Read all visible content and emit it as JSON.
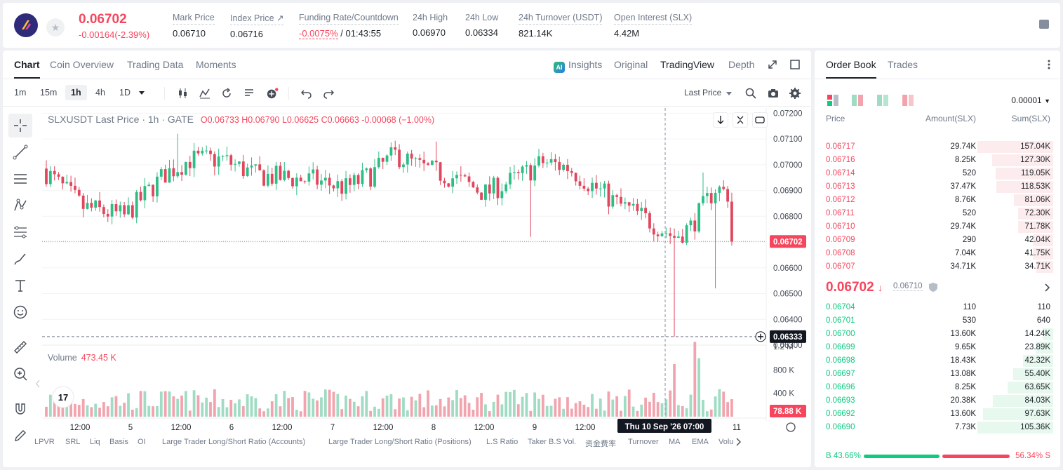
{
  "ticker": {
    "last_price": "0.06702",
    "change": "-0.00164(-2.39%)",
    "stats": [
      {
        "label": "Mark Price",
        "value": "0.06710"
      },
      {
        "label": "Index Price ↗",
        "value": "0.06716"
      },
      {
        "label": "Funding Rate/Countdown",
        "value_red": "-0.0075%",
        "value": "/ 01:43:55"
      },
      {
        "label": "24h High",
        "value": "0.06970"
      },
      {
        "label": "24h Low",
        "value": "0.06334"
      },
      {
        "label": "24h Turnover (USDT)",
        "value": "821.14K"
      },
      {
        "label": "Open Interest (SLX)",
        "value": "4.42M"
      }
    ]
  },
  "chart_tabs": {
    "left": [
      "Chart",
      "Coin Overview",
      "Trading Data",
      "Moments"
    ],
    "right": [
      "Insights",
      "Original",
      "TradingView",
      "Depth"
    ],
    "ai_badge": "AI",
    "active_left": "Chart",
    "active_right": "TradingView"
  },
  "timeframes": [
    "1m",
    "15m",
    "1h",
    "4h",
    "1D"
  ],
  "active_timeframe": "1h",
  "price_source": "Last Price",
  "legend": {
    "symbol": "SLXUSDT Last Price · 1h · GATE",
    "ohlc": "O0.06733  H0.06790  L0.06625  C0.06663  -0.00068  (−1.00%)"
  },
  "volume_legend": {
    "label": "Volume",
    "value": "473.45 K"
  },
  "price_axis": [
    "0.07200",
    "0.07100",
    "0.07000",
    "0.06900",
    "0.06800",
    "0.06700",
    "0.06600",
    "0.06500",
    "0.06400",
    "0.06300"
  ],
  "volume_axis": [
    "1.2 M",
    "800 K",
    "400 K"
  ],
  "time_axis": [
    "12:00",
    "5",
    "12:00",
    "6",
    "12:00",
    "7",
    "12:00",
    "8",
    "12:00",
    "9",
    "12:00",
    "11"
  ],
  "current_price_tag": "0.06702",
  "crosshair_price_tag": "0.06333",
  "crosshair_time_tag": "Thu 10 Sep '26   07:00",
  "volume_tag": "78.88 K",
  "tv_logo": "17",
  "bottom_indicators": [
    "LPVR",
    "SRL",
    "Liq",
    "Basis",
    "OI",
    "Large Trader Long/Short Ratio (Accounts)",
    "Large Trader Long/Short Ratio (Positions)",
    "L.S Ratio",
    "Taker B.S Vol.",
    "资金费率",
    "Turnover",
    "MA",
    "EMA",
    "Volu"
  ],
  "chart_data": {
    "type": "candlestick",
    "symbol": "SLXUSDT",
    "interval": "1h",
    "ylim": [
      0.063,
      0.0722
    ],
    "volume_ylim": [
      0,
      1200000
    ],
    "last_price": 0.06702,
    "low_marker": 0.06333,
    "series_colors": {
      "up": "#2ebd85",
      "down": "#e0475d",
      "up_volume": "#9fdcc3",
      "down_volume": "#f2a4ae"
    }
  },
  "order_book": {
    "tabs": [
      "Order Book",
      "Trades"
    ],
    "precision": "0.00001",
    "headers": [
      "Price",
      "Amount(SLX)",
      "Sum(SLX)"
    ],
    "asks": [
      {
        "price": "0.06717",
        "amount": "29.74K",
        "sum": "157.04K",
        "depth": 1.0
      },
      {
        "price": "0.06716",
        "amount": "8.25K",
        "sum": "127.30K",
        "depth": 0.81
      },
      {
        "price": "0.06714",
        "amount": "520",
        "sum": "119.05K",
        "depth": 0.76
      },
      {
        "price": "0.06713",
        "amount": "37.47K",
        "sum": "118.53K",
        "depth": 0.75
      },
      {
        "price": "0.06712",
        "amount": "8.76K",
        "sum": "81.06K",
        "depth": 0.52
      },
      {
        "price": "0.06711",
        "amount": "520",
        "sum": "72.30K",
        "depth": 0.46
      },
      {
        "price": "0.06710",
        "amount": "29.74K",
        "sum": "71.78K",
        "depth": 0.46
      },
      {
        "price": "0.06709",
        "amount": "290",
        "sum": "42.04K",
        "depth": 0.27
      },
      {
        "price": "0.06708",
        "amount": "7.04K",
        "sum": "41.75K",
        "depth": 0.27
      },
      {
        "price": "0.06707",
        "amount": "34.71K",
        "sum": "34.71K",
        "depth": 0.22
      }
    ],
    "mid_price": "0.06702",
    "mid_arrow": "↓",
    "mark_price": "0.06710",
    "bids": [
      {
        "price": "0.06704",
        "amount": "110",
        "sum": "110",
        "depth": 0.0
      },
      {
        "price": "0.06701",
        "amount": "530",
        "sum": "640",
        "depth": 0.0
      },
      {
        "price": "0.06700",
        "amount": "13.60K",
        "sum": "14.24K",
        "depth": 0.14
      },
      {
        "price": "0.06699",
        "amount": "9.65K",
        "sum": "23.89K",
        "depth": 0.23
      },
      {
        "price": "0.06698",
        "amount": "18.43K",
        "sum": "42.32K",
        "depth": 0.4
      },
      {
        "price": "0.06697",
        "amount": "13.08K",
        "sum": "55.40K",
        "depth": 0.53
      },
      {
        "price": "0.06696",
        "amount": "8.25K",
        "sum": "63.65K",
        "depth": 0.6
      },
      {
        "price": "0.06693",
        "amount": "20.38K",
        "sum": "84.03K",
        "depth": 0.8
      },
      {
        "price": "0.06692",
        "amount": "13.60K",
        "sum": "97.63K",
        "depth": 0.93
      },
      {
        "price": "0.06690",
        "amount": "7.73K",
        "sum": "105.36K",
        "depth": 1.0
      }
    ],
    "buy_ratio": "43.66%",
    "sell_ratio": "56.34%",
    "buy_label": "B",
    "sell_label": "S"
  }
}
